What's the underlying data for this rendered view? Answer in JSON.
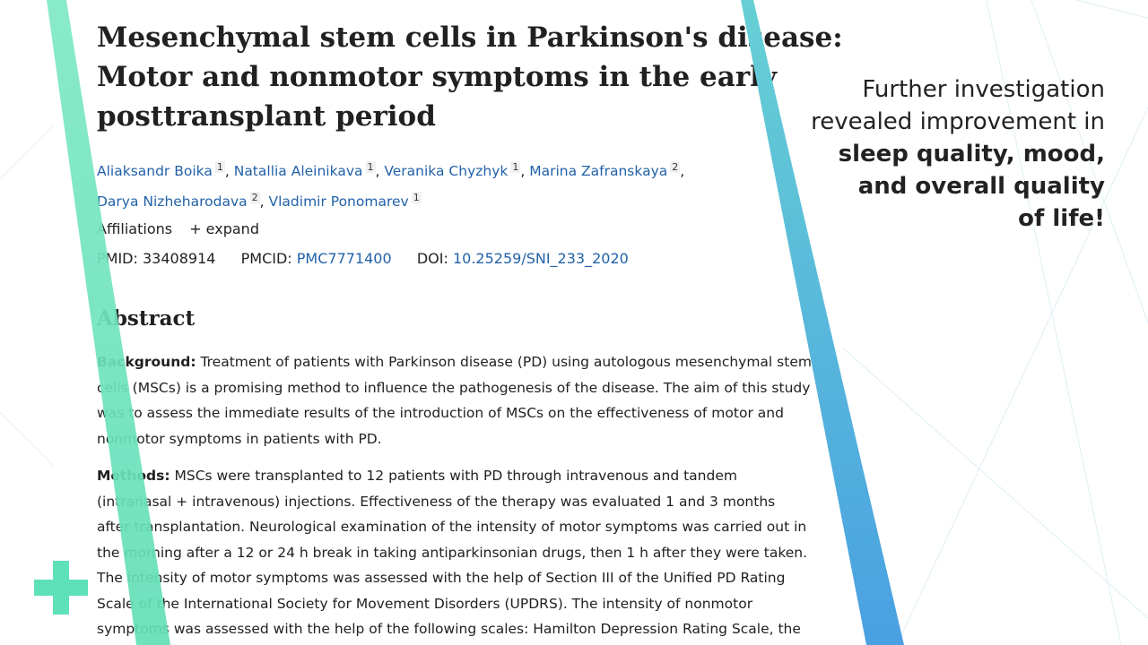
{
  "article": {
    "title_lines": [
      "Mesenchymal stem cells in Parkinson's disease:",
      "Motor and nonmotor symptoms in the early",
      "posttransplant period"
    ],
    "authors": [
      {
        "name": "Aliaksandr Boika",
        "aff": "1"
      },
      {
        "name": "Natallia Aleinikava",
        "aff": "1"
      },
      {
        "name": "Veranika Chyzhyk",
        "aff": "1"
      },
      {
        "name": "Marina Zafranskaya",
        "aff": "2"
      },
      {
        "name": "Darya Nizheharodava",
        "aff": "2"
      },
      {
        "name": "Vladimir Ponomarev",
        "aff": "1"
      }
    ],
    "affiliations_label": "Affiliations",
    "expand_label": "+ expand",
    "pmid_label": "PMID:",
    "pmid": "33408914",
    "pmcid_label": "PMCID:",
    "pmcid": "PMC7771400",
    "doi_label": "DOI:",
    "doi": "10.25259/SNI_233_2020",
    "abstract_heading": "Abstract",
    "background_label": "Background:",
    "background_lines": [
      " Treatment of patients with Parkinson disease (PD) using autologous mesenchymal stem",
      "cells (MSCs) is a promising method to influence the pathogenesis of the disease. The aim of this study",
      "was to assess the immediate results of the introduction of MSCs on the effectiveness of motor and",
      "nonmotor symptoms in patients with PD."
    ],
    "methods_label": "Methods:",
    "methods_lines": [
      " MSCs were transplanted to 12 patients with PD through intravenous and tandem",
      "(intranasal + intravenous) injections. Effectiveness of the therapy was evaluated 1 and 3 months",
      "after transplantation. Neurological examination of the intensity of motor symptoms was carried out in",
      "the morning after a 12 or 24 h break in taking antiparkinsonian drugs, then 1 h after they were taken.",
      "The intensity of motor symptoms was assessed with the help of Section III of the Unified PD Rating",
      "Scale of the International Society for Movement Disorders (UPDRS). The intensity of nonmotor",
      "symptoms was assessed with the help of the following scales: Hamilton Depression Rating Scale, the"
    ]
  },
  "headline": {
    "line1": "Further investigation",
    "line2": "revealed improvement in",
    "line3": "sleep quality, mood,",
    "line4": "and overall quality",
    "line5": "of life!"
  },
  "colors": {
    "accent_green": "#5ee0b8",
    "accent_blue": "#4aa6e0",
    "link": "#2262a8"
  },
  "icons": {
    "decor": "plus-icon"
  }
}
